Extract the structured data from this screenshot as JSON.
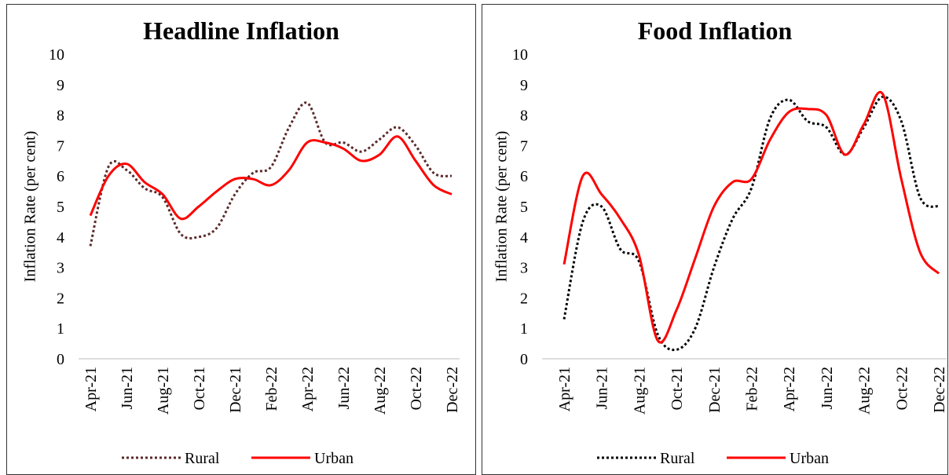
{
  "chart_data": [
    {
      "type": "line",
      "title": "Headline Inflation",
      "ylabel": "Inflation Rate (per cent)",
      "categories": [
        "Apr-21",
        null,
        "Jun-21",
        null,
        "Aug-21",
        null,
        "Oct-21",
        null,
        "Dec-21",
        null,
        "Feb-22",
        null,
        "Apr-22",
        null,
        "Jun-22",
        null,
        "Aug-22",
        null,
        "Oct-22",
        null,
        "Dec-22"
      ],
      "series": [
        {
          "name": "Rural",
          "color": "#5b2a2a",
          "style": "dotted",
          "values": [
            3.7,
            6.3,
            6.2,
            5.6,
            5.3,
            4.1,
            4.0,
            4.3,
            5.4,
            6.1,
            6.3,
            7.6,
            8.4,
            7.1,
            7.1,
            6.8,
            7.2,
            7.6,
            7.0,
            6.1,
            6.0
          ]
        },
        {
          "name": "Urban",
          "color": "#ff0000",
          "style": "solid",
          "values": [
            4.7,
            6.0,
            6.4,
            5.8,
            5.4,
            4.6,
            5.0,
            5.5,
            5.9,
            5.9,
            5.7,
            6.2,
            7.1,
            7.1,
            6.9,
            6.5,
            6.7,
            7.3,
            6.5,
            5.7,
            5.4
          ]
        }
      ],
      "ylim": [
        0,
        10
      ],
      "yticks": [
        0,
        1,
        2,
        3,
        4,
        5,
        6,
        7,
        8,
        9,
        10
      ],
      "grid": false,
      "legend": "bottom"
    },
    {
      "type": "line",
      "title": "Food Inflation",
      "ylabel": "Inflation Rate (per cent)",
      "categories": [
        "Apr-21",
        null,
        "Jun-21",
        null,
        "Aug-21",
        null,
        "Oct-21",
        null,
        "Dec-21",
        null,
        "Feb-22",
        null,
        "Apr-22",
        null,
        "Jun-22",
        null,
        "Aug-22",
        null,
        "Oct-22",
        null,
        "Dec-22"
      ],
      "series": [
        {
          "name": "Rural",
          "color": "#000000",
          "style": "dotted",
          "values": [
            1.3,
            4.5,
            5.0,
            3.6,
            3.2,
            0.8,
            0.3,
            1.0,
            3.0,
            4.6,
            5.6,
            7.9,
            8.5,
            7.8,
            7.6,
            6.7,
            7.6,
            8.6,
            7.8,
            5.3,
            5.0
          ]
        },
        {
          "name": "Urban",
          "color": "#ff0000",
          "style": "solid",
          "values": [
            3.1,
            6.0,
            5.4,
            4.6,
            3.4,
            0.6,
            1.6,
            3.3,
            5.0,
            5.8,
            5.9,
            7.2,
            8.1,
            8.2,
            8.0,
            6.7,
            7.7,
            8.7,
            5.9,
            3.5,
            2.8
          ]
        }
      ],
      "ylim": [
        0,
        10
      ],
      "yticks": [
        0,
        1,
        2,
        3,
        4,
        5,
        6,
        7,
        8,
        9,
        10
      ],
      "grid": false,
      "legend": "bottom"
    }
  ]
}
